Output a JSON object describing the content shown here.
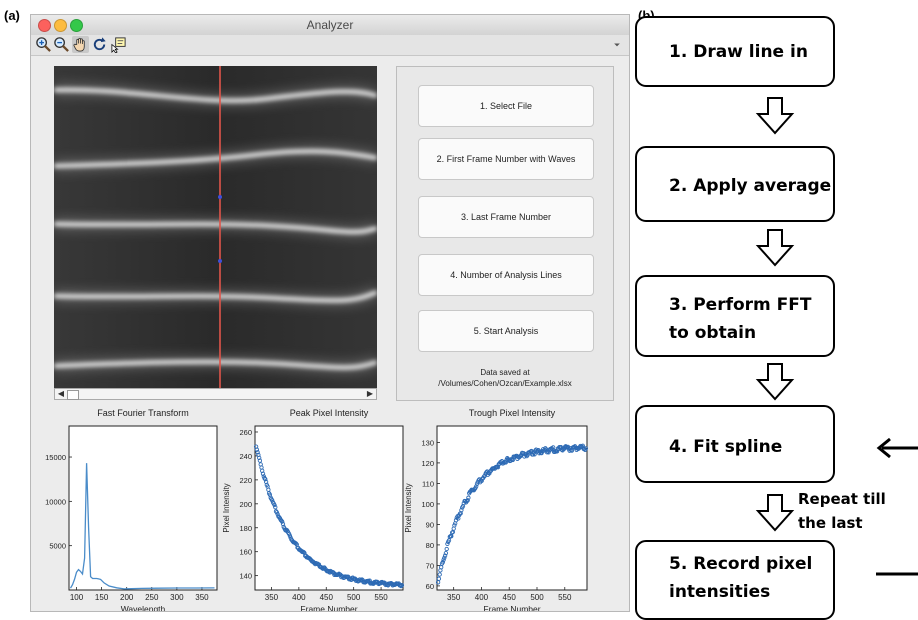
{
  "labels": {
    "panel_a": "(a)",
    "panel_b": "(b)"
  },
  "window": {
    "title": "Analyzer",
    "traffic_lights": {
      "close": "#fc615d",
      "minimize": "#fdbc40",
      "zoom": "#34c84a"
    },
    "toolbar_icons": [
      "zoom-in-icon",
      "zoom-out-icon",
      "pan-hand-icon",
      "rotate-icon",
      "data-cursor-icon"
    ]
  },
  "buttons": [
    {
      "label": "1. Select File"
    },
    {
      "label": "2. First Frame Number with Waves"
    },
    {
      "label": "3. Last Frame Number"
    },
    {
      "label": "4. Number of Analysis Lines"
    },
    {
      "label": "5. Start Analysis"
    }
  ],
  "saved": {
    "line1": "Data saved at",
    "line2": "/Volumes/Cohen/Ozcan/Example.xlsx"
  },
  "chart_data": [
    {
      "type": "line",
      "title": "Fast Fourier Transform",
      "xlabel": "Wavelength",
      "ylabel": "",
      "xlim": [
        85,
        380
      ],
      "ylim": [
        0,
        18500
      ],
      "xticks": [
        100,
        150,
        200,
        250,
        300,
        350
      ],
      "yticks": [
        5000,
        10000,
        15000
      ],
      "color": "#4a8cc9",
      "x": [
        88,
        92,
        96,
        100,
        104,
        108,
        112,
        116,
        120,
        124,
        128,
        132,
        136,
        140,
        144,
        148,
        155,
        165,
        180,
        195,
        210,
        230,
        260,
        300,
        340,
        375
      ],
      "y": [
        200,
        600,
        1200,
        2000,
        2300,
        2100,
        1800,
        3600,
        14300,
        7000,
        1500,
        1300,
        1300,
        1300,
        1250,
        1200,
        800,
        450,
        250,
        120,
        150,
        180,
        200,
        220,
        230,
        240
      ]
    },
    {
      "type": "scatter",
      "title": "Peak Pixel Intensity",
      "xlabel": "Frame Number",
      "ylabel": "Pixel Intensity",
      "xlim": [
        320,
        590
      ],
      "ylim": [
        128,
        265
      ],
      "xticks": [
        350,
        400,
        450,
        500,
        550
      ],
      "yticks": [
        140,
        160,
        180,
        200,
        220,
        240,
        260
      ],
      "color": "#2d6ab4",
      "curve": "decay",
      "params": {
        "start": 252,
        "end": 131,
        "tau": 60
      }
    },
    {
      "type": "scatter",
      "title": "Trough Pixel Intensity",
      "xlabel": "Frame Number",
      "ylabel": "Pixel Intensity",
      "xlim": [
        320,
        590
      ],
      "ylim": [
        58,
        138
      ],
      "xticks": [
        350,
        400,
        450,
        500,
        550
      ],
      "yticks": [
        60,
        70,
        80,
        90,
        100,
        110,
        120,
        130
      ],
      "color": "#2d6ab4",
      "curve": "rise",
      "params": {
        "start": 62,
        "end": 128,
        "mid": 375,
        "tau": 55
      }
    }
  ],
  "flowchart": {
    "steps": [
      {
        "line1": "1. Draw line in",
        "line2": ""
      },
      {
        "line1": "2. Apply average",
        "line2": ""
      },
      {
        "line1": "3. Perform FFT",
        "line2": "to obtain"
      },
      {
        "line1": "4. Fit spline",
        "line2": ""
      },
      {
        "line1": "5. Record pixel",
        "line2": "intensities"
      }
    ],
    "repeat_line1": "Repeat till",
    "repeat_line2": "the last"
  }
}
